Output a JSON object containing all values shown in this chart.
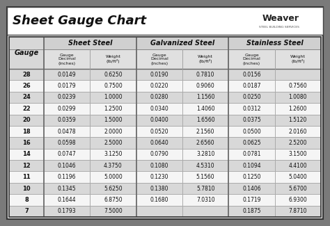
{
  "title": "Sheet Gauge Chart",
  "bg_outer": "#7a7a7a",
  "bg_inner": "#ffffff",
  "bg_row_alt": "#d8d8d8",
  "bg_row_white": "#f5f5f5",
  "col_headers": [
    "Sheet Steel",
    "Galvanized Steel",
    "Stainless Steel"
  ],
  "gauge_col": [
    28,
    26,
    24,
    22,
    20,
    18,
    16,
    14,
    12,
    11,
    10,
    8,
    7
  ],
  "sheet_steel": [
    [
      "0.0149",
      "0.6250"
    ],
    [
      "0.0179",
      "0.7500"
    ],
    [
      "0.0239",
      "1.0000"
    ],
    [
      "0.0299",
      "1.2500"
    ],
    [
      "0.0359",
      "1.5000"
    ],
    [
      "0.0478",
      "2.0000"
    ],
    [
      "0.0598",
      "2.5000"
    ],
    [
      "0.0747",
      "3.1250"
    ],
    [
      "0.1046",
      "4.3750"
    ],
    [
      "0.1196",
      "5.0000"
    ],
    [
      "0.1345",
      "5.6250"
    ],
    [
      "0.1644",
      "6.8750"
    ],
    [
      "0.1793",
      "7.5000"
    ]
  ],
  "galvanized_steel": [
    [
      "0.0190",
      "0.7810"
    ],
    [
      "0.0220",
      "0.9060"
    ],
    [
      "0.0280",
      "1.1560"
    ],
    [
      "0.0340",
      "1.4060"
    ],
    [
      "0.0400",
      "1.6560"
    ],
    [
      "0.0520",
      "2.1560"
    ],
    [
      "0.0640",
      "2.6560"
    ],
    [
      "0.0790",
      "3.2810"
    ],
    [
      "0.1080",
      "4.5310"
    ],
    [
      "0.1230",
      "5.1560"
    ],
    [
      "0.1380",
      "5.7810"
    ],
    [
      "0.1680",
      "7.0310"
    ],
    [
      "",
      ""
    ]
  ],
  "stainless_steel": [
    [
      "0.0156",
      ""
    ],
    [
      "0.0187",
      "0.7560"
    ],
    [
      "0.0250",
      "1.0080"
    ],
    [
      "0.0312",
      "1.2600"
    ],
    [
      "0.0375",
      "1.5120"
    ],
    [
      "0.0500",
      "2.0160"
    ],
    [
      "0.0625",
      "2.5200"
    ],
    [
      "0.0781",
      "3.1500"
    ],
    [
      "0.1094",
      "4.4100"
    ],
    [
      "0.1250",
      "5.0400"
    ],
    [
      "0.1406",
      "5.6700"
    ],
    [
      "0.1719",
      "6.9300"
    ],
    [
      "0.1875",
      "7.8710"
    ]
  ]
}
